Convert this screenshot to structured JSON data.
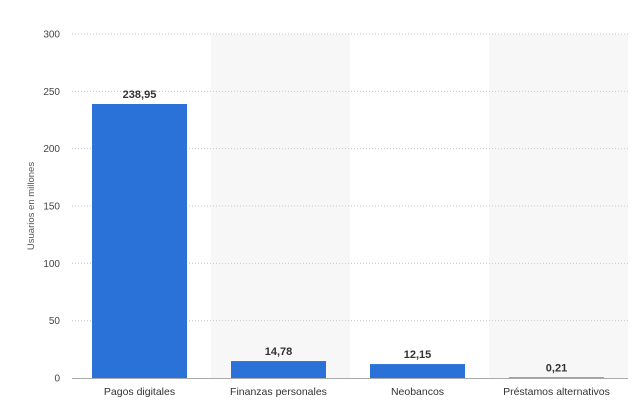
{
  "chart_data": {
    "type": "bar",
    "title": "",
    "xlabel": "",
    "ylabel": "Usuarios en millones",
    "categories": [
      "Pagos digitales",
      "Finanzas personales",
      "Neobancos",
      "Préstamos alternativos"
    ],
    "values": [
      238.95,
      14.78,
      12.15,
      0.21
    ],
    "data_labels": [
      "238,95",
      "14,78",
      "12,15",
      "0,21"
    ],
    "ylim": [
      0,
      300
    ],
    "yticks": [
      0,
      50,
      100,
      150,
      200,
      250,
      300
    ],
    "grid": true,
    "grid_style": "dotted",
    "legend": "none",
    "bar_color": "#2a71d8",
    "band_color": "#f7f7f7"
  }
}
